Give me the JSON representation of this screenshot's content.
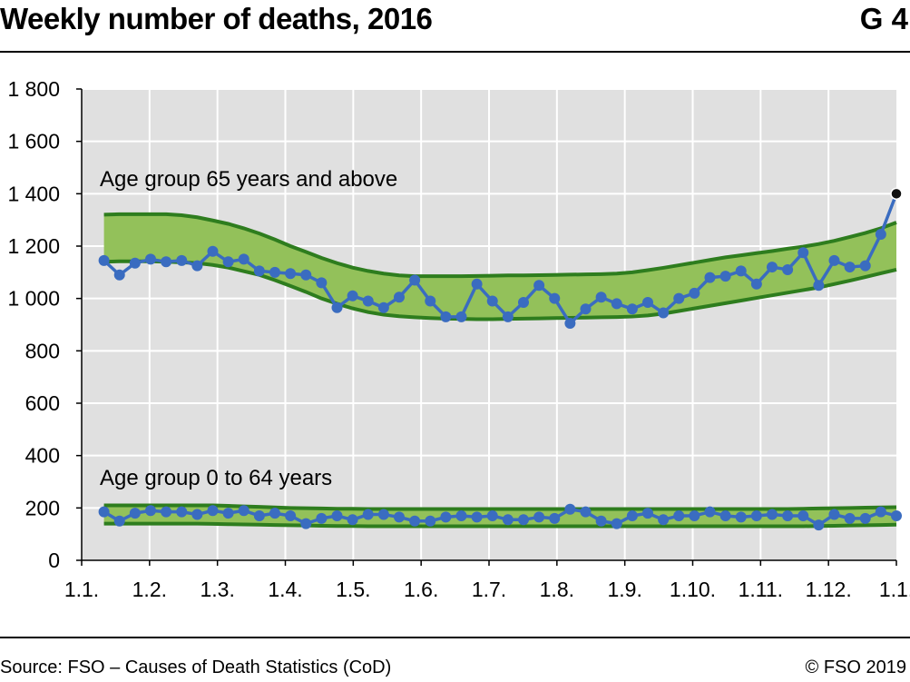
{
  "header": {
    "title": "Weekly number of deaths, 2016",
    "code": "G 4"
  },
  "footer": {
    "source": "Source: FSO – Causes of Death Statistics (CoD)",
    "copyright": "© FSO 2019"
  },
  "colors": {
    "plot_bg": "#e0e0e0",
    "band_fill": "#93c15a",
    "band_edge": "#2e7d1e",
    "series": "#3a6cc0",
    "last_point": "#111111",
    "grid": "#ffffff"
  },
  "chart_data": {
    "type": "line",
    "ylim": [
      0,
      1800
    ],
    "yticks": [
      0,
      200,
      400,
      600,
      800,
      1000,
      1200,
      1400,
      1600,
      1800
    ],
    "ytick_labels": [
      "0",
      "200",
      "400",
      "600",
      "800",
      "1 000",
      "1 200",
      "1 400",
      "1 600",
      "1 800"
    ],
    "xtick_labels": [
      "1.1.",
      "1.2.",
      "1.3.",
      "1.4.",
      "1.5.",
      "1.6.",
      "1.7.",
      "1.8.",
      "1.9.",
      "1.10.",
      "1.11.",
      "1.12.",
      "1.1."
    ],
    "grid": true,
    "annotations": [
      "Age group 65 years and above",
      "Age group 0 to 64 years"
    ],
    "series": [
      {
        "values": [
          1145,
          1090,
          1135,
          1150,
          1140,
          1145,
          1125,
          1180,
          1140,
          1150,
          1105,
          1100,
          1095,
          1090,
          1060,
          965,
          1010,
          990,
          965,
          1005,
          1070,
          990,
          930,
          930,
          1055,
          990,
          930,
          985,
          1050,
          1000,
          905,
          960,
          1005,
          980,
          960,
          985,
          945,
          1000,
          1020,
          1080,
          1085,
          1105,
          1055,
          1120,
          1110,
          1175,
          1050,
          1145,
          1120,
          1125,
          1245,
          1400
        ],
        "band_upper": [
          1320,
          1322,
          1322,
          1322,
          1322,
          1318,
          1310,
          1298,
          1285,
          1268,
          1248,
          1225,
          1200,
          1178,
          1155,
          1135,
          1118,
          1105,
          1095,
          1088,
          1085,
          1085,
          1085,
          1085,
          1086,
          1087,
          1088,
          1088,
          1089,
          1090,
          1091,
          1092,
          1093,
          1095,
          1100,
          1108,
          1117,
          1127,
          1137,
          1147,
          1157,
          1165,
          1173,
          1181,
          1190,
          1198,
          1208,
          1220,
          1235,
          1250,
          1268,
          1290
        ],
        "band_lower": [
          1140,
          1142,
          1142,
          1142,
          1140,
          1138,
          1135,
          1128,
          1118,
          1104,
          1090,
          1070,
          1048,
          1025,
          1000,
          980,
          962,
          948,
          938,
          932,
          928,
          925,
          923,
          922,
          921,
          921,
          922,
          923,
          924,
          925,
          926,
          927,
          928,
          929,
          931,
          935,
          942,
          952,
          962,
          972,
          982,
          992,
          1002,
          1012,
          1022,
          1032,
          1042,
          1055,
          1068,
          1082,
          1096,
          1110
        ]
      },
      {
        "values": [
          185,
          150,
          180,
          190,
          185,
          185,
          175,
          190,
          180,
          190,
          170,
          180,
          170,
          140,
          160,
          170,
          155,
          175,
          175,
          165,
          150,
          150,
          165,
          170,
          165,
          170,
          155,
          155,
          165,
          160,
          195,
          185,
          150,
          140,
          170,
          180,
          155,
          170,
          170,
          185,
          170,
          165,
          170,
          175,
          170,
          170,
          135,
          175,
          160,
          160,
          185,
          170
        ],
        "band_upper": [
          210,
          210,
          210,
          210,
          210,
          210,
          210,
          210,
          208,
          206,
          204,
          202,
          200,
          199,
          198,
          197,
          197,
          196,
          196,
          196,
          196,
          196,
          196,
          196,
          196,
          196,
          196,
          196,
          196,
          196,
          196,
          196,
          196,
          196,
          196,
          196,
          196,
          196,
          196,
          196,
          196,
          196,
          196,
          196,
          196,
          197,
          198,
          199,
          200,
          201,
          202,
          203
        ],
        "band_lower": [
          140,
          140,
          140,
          140,
          140,
          140,
          140,
          139,
          138,
          137,
          136,
          135,
          134,
          133,
          132,
          131,
          131,
          130,
          130,
          130,
          130,
          130,
          130,
          130,
          130,
          130,
          130,
          130,
          130,
          130,
          130,
          130,
          130,
          130,
          130,
          130,
          130,
          130,
          130,
          130,
          130,
          130,
          130,
          130,
          130,
          130,
          131,
          132,
          133,
          134,
          135,
          136
        ]
      }
    ]
  }
}
